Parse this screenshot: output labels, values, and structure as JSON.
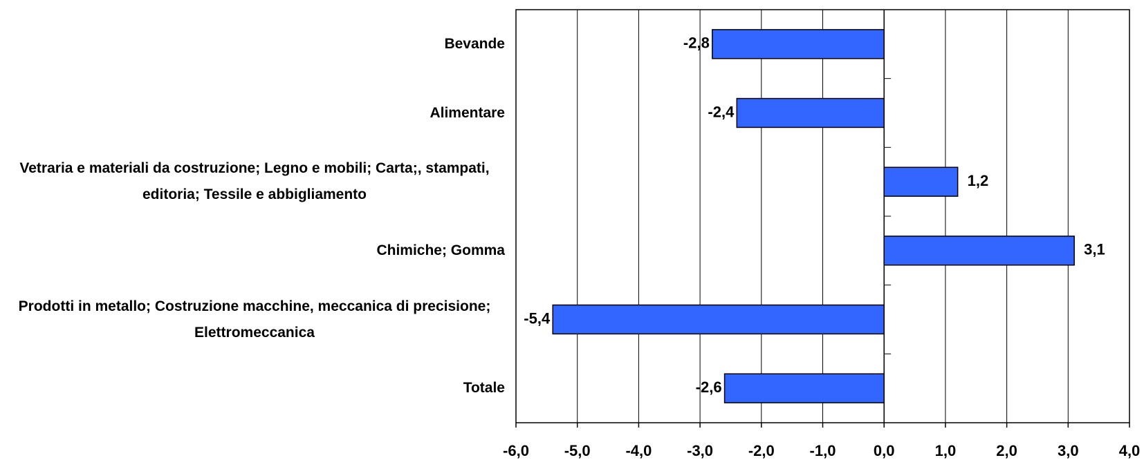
{
  "chart_data": {
    "type": "bar",
    "orientation": "horizontal",
    "categories": [
      "Bevande",
      "Alimentare",
      "Vetraria e materiali da costruzione; Legno e mobili; Carta;, stampati, editoria; Tessile e abbigliamento",
      "Chimiche; Gomma",
      "Prodotti in metallo; Costruzione macchine, meccanica di precisione; Elettromeccanica",
      "Totale"
    ],
    "values": [
      -2.8,
      -2.4,
      1.2,
      3.1,
      -5.4,
      -2.6
    ],
    "value_labels": [
      "-2,8",
      "-2,4",
      "1,2",
      "3,1",
      "-5,4",
      "-2,6"
    ],
    "color": "#3366ff",
    "xlim": [
      -6,
      4
    ],
    "xticks": [
      {
        "value": -6,
        "label": "-6,0"
      },
      {
        "value": -5,
        "label": "-5,0"
      },
      {
        "value": -4,
        "label": "-4,0"
      },
      {
        "value": -3,
        "label": "-3,0"
      },
      {
        "value": -2,
        "label": "-2,0"
      },
      {
        "value": -1,
        "label": "-1,0"
      },
      {
        "value": 0,
        "label": "0,0"
      },
      {
        "value": 1,
        "label": "1,0"
      },
      {
        "value": 2,
        "label": "2,0"
      },
      {
        "value": 3,
        "label": "3,0"
      },
      {
        "value": 4,
        "label": "4,0"
      }
    ],
    "grid": true
  }
}
